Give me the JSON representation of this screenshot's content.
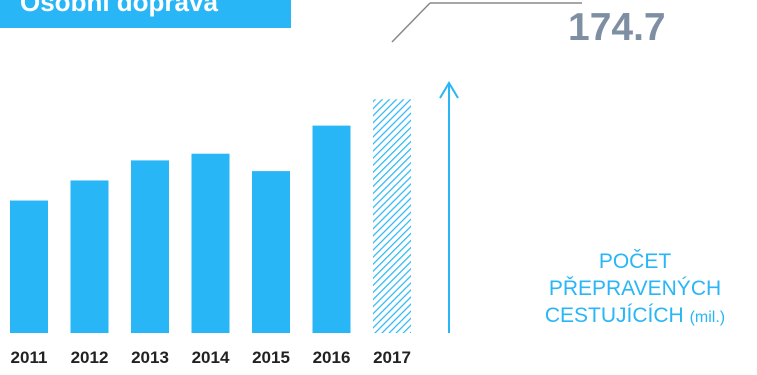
{
  "header": {
    "title": "Osobní doprava"
  },
  "chart_data": {
    "type": "bar",
    "categories": [
      "2011",
      "2012",
      "2013",
      "2014",
      "2015",
      "2016",
      "2017"
    ],
    "values": [
      99,
      114,
      129,
      134,
      121,
      155,
      174.7
    ],
    "estimated": [
      false,
      false,
      false,
      false,
      false,
      false,
      true
    ],
    "highlight_value": "174.7",
    "ylabel_lines": [
      "POČET",
      "PŘEPRAVENÝCH",
      "CESTUJÍCÍCH"
    ],
    "ylabel_unit": "(mil.)",
    "ylim": [
      0,
      180
    ],
    "colors": {
      "bar": "#29b6f6",
      "hatch": "#29b6f6",
      "label": "#7e8ea3",
      "tick": "#222222"
    }
  }
}
